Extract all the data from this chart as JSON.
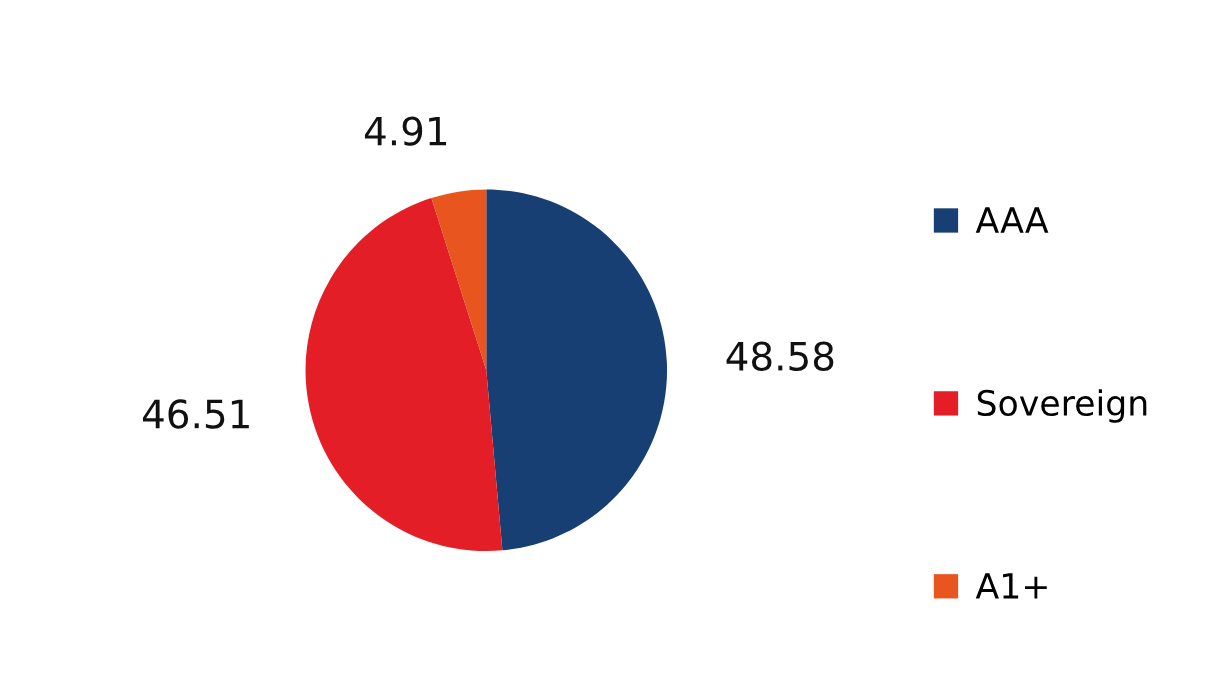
{
  "chart_data": {
    "type": "pie",
    "categories": [
      "AAA",
      "Sovereign",
      "A1+"
    ],
    "values": [
      48.58,
      46.51,
      4.91
    ],
    "colors": [
      "#173f73",
      "#e31e26",
      "#e8551f"
    ],
    "data_labels": true,
    "legend": "right"
  }
}
